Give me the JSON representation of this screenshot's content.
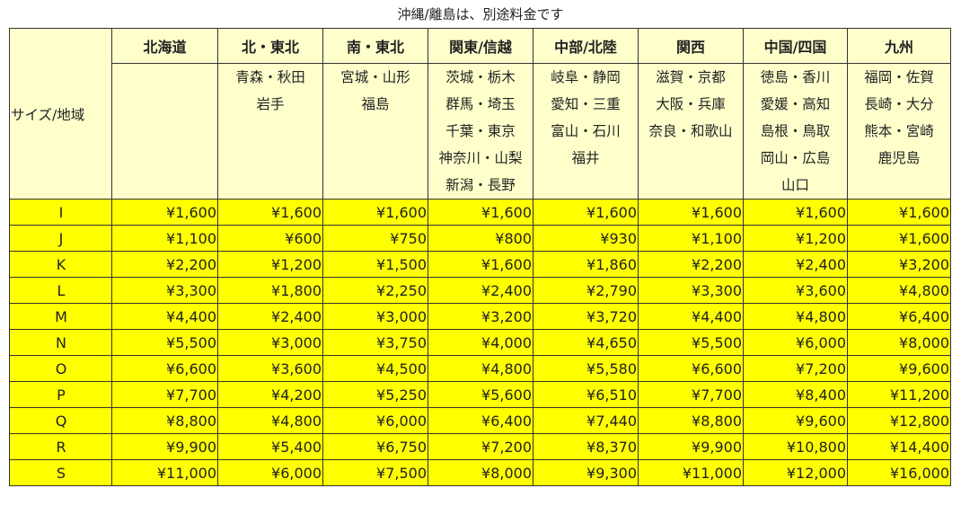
{
  "note": "沖縄/離島は、別途料金です",
  "corner_label": "サイズ/地域",
  "regions": [
    {
      "name": "北海道",
      "areas": ""
    },
    {
      "name": "北・東北",
      "areas": "青森・秋田\n岩手"
    },
    {
      "name": "南・東北",
      "areas": "宮城・山形\n福島"
    },
    {
      "name": "関東/信越",
      "areas": "茨城・栃木\n群馬・埼玉\n千葉・東京\n神奈川・山梨\n新潟・長野"
    },
    {
      "name": "中部/北陸",
      "areas": "岐阜・静岡\n愛知・三重\n富山・石川\n福井"
    },
    {
      "name": "関西",
      "areas": "滋賀・京都\n大阪・兵庫\n奈良・和歌山"
    },
    {
      "name": "中国/四国",
      "areas": "徳島・香川\n愛媛・高知\n島根・鳥取\n岡山・広島\n山口"
    },
    {
      "name": "九州",
      "areas": "福岡・佐賀\n長崎・大分\n熊本・宮崎\n鹿児島"
    }
  ],
  "rows": [
    {
      "size": "I",
      "prices": [
        "¥1,600",
        "¥1,600",
        "¥1,600",
        "¥1,600",
        "¥1,600",
        "¥1,600",
        "¥1,600",
        "¥1,600"
      ]
    },
    {
      "size": "J",
      "prices": [
        "¥1,100",
        "¥600",
        "¥750",
        "¥800",
        "¥930",
        "¥1,100",
        "¥1,200",
        "¥1,600"
      ]
    },
    {
      "size": "K",
      "prices": [
        "¥2,200",
        "¥1,200",
        "¥1,500",
        "¥1,600",
        "¥1,860",
        "¥2,200",
        "¥2,400",
        "¥3,200"
      ]
    },
    {
      "size": "L",
      "prices": [
        "¥3,300",
        "¥1,800",
        "¥2,250",
        "¥2,400",
        "¥2,790",
        "¥3,300",
        "¥3,600",
        "¥4,800"
      ]
    },
    {
      "size": "M",
      "prices": [
        "¥4,400",
        "¥2,400",
        "¥3,000",
        "¥3,200",
        "¥3,720",
        "¥4,400",
        "¥4,800",
        "¥6,400"
      ]
    },
    {
      "size": "N",
      "prices": [
        "¥5,500",
        "¥3,000",
        "¥3,750",
        "¥4,000",
        "¥4,650",
        "¥5,500",
        "¥6,000",
        "¥8,000"
      ]
    },
    {
      "size": "O",
      "prices": [
        "¥6,600",
        "¥3,600",
        "¥4,500",
        "¥4,800",
        "¥5,580",
        "¥6,600",
        "¥7,200",
        "¥9,600"
      ]
    },
    {
      "size": "P",
      "prices": [
        "¥7,700",
        "¥4,200",
        "¥5,250",
        "¥5,600",
        "¥6,510",
        "¥7,700",
        "¥8,400",
        "¥11,200"
      ]
    },
    {
      "size": "Q",
      "prices": [
        "¥8,800",
        "¥4,800",
        "¥6,000",
        "¥6,400",
        "¥7,440",
        "¥8,800",
        "¥9,600",
        "¥12,800"
      ]
    },
    {
      "size": "R",
      "prices": [
        "¥9,900",
        "¥5,400",
        "¥6,750",
        "¥7,200",
        "¥8,370",
        "¥9,900",
        "¥10,800",
        "¥14,400"
      ]
    },
    {
      "size": "S",
      "prices": [
        "¥11,000",
        "¥6,000",
        "¥7,500",
        "¥8,000",
        "¥9,300",
        "¥11,000",
        "¥12,000",
        "¥16,000"
      ]
    }
  ],
  "colors": {
    "header_bg": "#ffffcc",
    "row_bg": "#ffff00"
  }
}
